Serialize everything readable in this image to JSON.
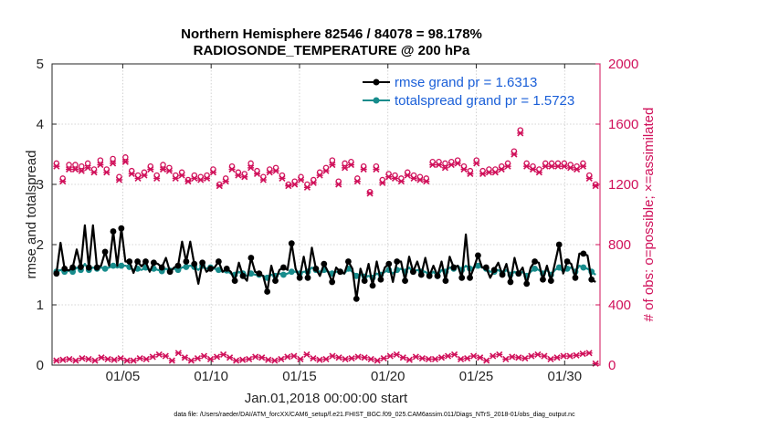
{
  "chart_data": {
    "type": "line",
    "title_line1": "Northern Hemisphere 82546 / 84078 = 98.178%",
    "title_line2": "RADIOSONDE_TEMPERATURE @ 200 hPa",
    "xlabel": "Jan.01,2018 00:00:00 start",
    "ylabel_left": "rmse and totalspread",
    "ylabel_right": "# of obs: o=possible; ×=assimilated",
    "footnote": "data file: /Users/raeder/DAI/ATM_forcXX/CAM6_setup/f.e21.FHIST_BGC.f09_025.CAM6assim.011/Diags_NTrS_2018-01/obs_diag_output.nc",
    "xlim": [
      1,
      32
    ],
    "ylim_left": [
      0,
      5
    ],
    "ylim_right": [
      0,
      2000
    ],
    "x_ticks": [
      5,
      10,
      15,
      20,
      25,
      30
    ],
    "x_tick_labels": [
      "01/05",
      "01/10",
      "01/15",
      "01/20",
      "01/25",
      "01/30"
    ],
    "y_ticks_left": [
      "0",
      "1",
      "2",
      "3",
      "4",
      "5"
    ],
    "y_ticks_right": [
      "0",
      "400",
      "800",
      "1200",
      "1600",
      "2000"
    ],
    "colors": {
      "rmse": "#000000",
      "spread": "#178c8c",
      "obs": "#d0105a",
      "legend_text": "#1a5fd8"
    },
    "series": [
      {
        "name": "rmse",
        "legend": "rmse grand pr = 1.6313",
        "axis": "left",
        "values": [
          1.52,
          2.03,
          1.6,
          1.57,
          1.62,
          1.92,
          1.63,
          2.32,
          1.62,
          2.32,
          1.62,
          1.65,
          1.88,
          1.65,
          2.22,
          1.65,
          2.27,
          1.72,
          1.72,
          1.53,
          1.72,
          1.64,
          1.72,
          1.55,
          1.7,
          1.68,
          1.62,
          1.78,
          1.55,
          1.62,
          1.65,
          2.05,
          1.72,
          2.05,
          1.68,
          1.35,
          1.7,
          1.55,
          1.6,
          1.62,
          1.72,
          1.55,
          1.6,
          1.55,
          1.4,
          1.7,
          1.48,
          1.4,
          1.78,
          1.55,
          1.52,
          1.48,
          1.22,
          1.65,
          1.4,
          1.58,
          1.62,
          1.58,
          2.02,
          1.6,
          1.45,
          1.8,
          1.45,
          1.95,
          1.6,
          1.48,
          1.68,
          1.55,
          1.38,
          1.62,
          1.55,
          1.52,
          1.72,
          1.6,
          1.1,
          1.6,
          1.4,
          1.68,
          1.32,
          1.72,
          1.42,
          1.62,
          1.68,
          1.38,
          1.72,
          1.72,
          1.4,
          1.8,
          1.55,
          1.72,
          1.5,
          1.78,
          1.48,
          1.65,
          1.48,
          1.72,
          1.4,
          1.8,
          1.62,
          1.65,
          1.45,
          2.17,
          1.45,
          1.62,
          1.82,
          1.62,
          1.62,
          1.45,
          1.58,
          1.7,
          1.5,
          1.68,
          1.38,
          1.78,
          1.52,
          1.62,
          1.35,
          1.62,
          1.72,
          1.7,
          1.42,
          1.65,
          1.4,
          1.7,
          2.0,
          1.52,
          1.72,
          1.68,
          1.45,
          1.85,
          1.85,
          1.82,
          1.42,
          1.38
        ],
        "markers_every": 2
      },
      {
        "name": "totalspread",
        "legend": "totalspread grand pr = 1.5723",
        "axis": "left",
        "values": [
          1.55,
          1.58,
          1.55,
          1.57,
          1.55,
          1.62,
          1.58,
          1.68,
          1.58,
          1.62,
          1.6,
          1.62,
          1.6,
          1.62,
          1.65,
          1.62,
          1.65,
          1.65,
          1.63,
          1.58,
          1.6,
          1.58,
          1.62,
          1.57,
          1.6,
          1.58,
          1.56,
          1.6,
          1.57,
          1.6,
          1.58,
          1.62,
          1.63,
          1.65,
          1.63,
          1.58,
          1.65,
          1.6,
          1.62,
          1.6,
          1.58,
          1.55,
          1.57,
          1.52,
          1.5,
          1.55,
          1.52,
          1.48,
          1.52,
          1.5,
          1.5,
          1.48,
          1.45,
          1.5,
          1.48,
          1.52,
          1.5,
          1.52,
          1.55,
          1.55,
          1.52,
          1.55,
          1.55,
          1.62,
          1.58,
          1.55,
          1.58,
          1.55,
          1.52,
          1.55,
          1.55,
          1.52,
          1.6,
          1.55,
          1.48,
          1.5,
          1.47,
          1.48,
          1.45,
          1.52,
          1.5,
          1.55,
          1.58,
          1.52,
          1.58,
          1.6,
          1.55,
          1.62,
          1.55,
          1.58,
          1.55,
          1.55,
          1.5,
          1.55,
          1.48,
          1.58,
          1.55,
          1.62,
          1.6,
          1.65,
          1.58,
          1.65,
          1.6,
          1.62,
          1.65,
          1.62,
          1.6,
          1.55,
          1.55,
          1.58,
          1.52,
          1.58,
          1.5,
          1.55,
          1.52,
          1.55,
          1.48,
          1.55,
          1.6,
          1.58,
          1.52,
          1.58,
          1.5,
          1.58,
          1.62,
          1.55,
          1.6,
          1.62,
          1.55,
          1.65,
          1.62,
          1.6,
          1.55,
          1.5
        ],
        "markers_every": 2
      },
      {
        "name": "obs_possible",
        "marker": "o",
        "axis": "right",
        "values": [
          1340,
          1240,
          1330,
          1330,
          1320,
          1340,
          1300,
          1360,
          1300,
          1370,
          1250,
          1380,
          1290,
          1260,
          1280,
          1320,
          1260,
          1330,
          1310,
          1260,
          1280,
          1230,
          1260,
          1250,
          1260,
          1300,
          1200,
          1240,
          1320,
          1280,
          1270,
          1340,
          1290,
          1250,
          1300,
          1310,
          1260,
          1200,
          1220,
          1250,
          1200,
          1230,
          1280,
          1310,
          1360,
          1220,
          1340,
          1350,
          1240,
          1320,
          1150,
          1320,
          1230,
          1270,
          1260,
          1240,
          1280,
          1260,
          1250,
          1240,
          1350,
          1350,
          1340,
          1350,
          1360,
          1320,
          1290,
          1360,
          1290,
          1300,
          1300,
          1320,
          1340,
          1420,
          1560,
          1340,
          1320,
          1300,
          1340,
          1340,
          1340,
          1340,
          1330,
          1320,
          1340,
          1260,
          1200
        ]
      },
      {
        "name": "obs_assimilated",
        "marker": "x",
        "axis": "right",
        "values": [
          1320,
          1220,
          1300,
          1300,
          1290,
          1310,
          1280,
          1330,
          1280,
          1340,
          1230,
          1350,
          1270,
          1240,
          1260,
          1300,
          1240,
          1300,
          1290,
          1240,
          1260,
          1220,
          1240,
          1230,
          1240,
          1280,
          1190,
          1220,
          1300,
          1260,
          1250,
          1310,
          1270,
          1230,
          1280,
          1290,
          1240,
          1190,
          1200,
          1230,
          1180,
          1210,
          1260,
          1290,
          1330,
          1200,
          1310,
          1330,
          1220,
          1300,
          1140,
          1300,
          1210,
          1250,
          1240,
          1220,
          1260,
          1240,
          1230,
          1220,
          1330,
          1330,
          1310,
          1330,
          1340,
          1300,
          1270,
          1340,
          1270,
          1280,
          1280,
          1300,
          1320,
          1400,
          1540,
          1320,
          1300,
          1280,
          1320,
          1320,
          1320,
          1320,
          1310,
          1300,
          1320,
          1240,
          1190
        ]
      },
      {
        "name": "obs_low",
        "marker": "x",
        "axis": "right",
        "values": [
          30,
          35,
          40,
          30,
          45,
          40,
          30,
          50,
          40,
          35,
          45,
          30,
          30,
          45,
          40,
          55,
          70,
          60,
          30,
          80,
          50,
          30,
          45,
          60,
          40,
          55,
          70,
          50,
          30,
          35,
          40,
          55,
          50,
          35,
          30,
          40,
          55,
          60,
          40,
          70,
          45,
          35,
          40,
          60,
          50,
          40,
          45,
          55,
          50,
          40,
          30,
          45,
          60,
          70,
          50,
          35,
          55,
          45,
          40,
          40,
          50,
          60,
          70,
          40,
          45,
          60,
          50,
          30,
          60,
          70,
          40,
          55,
          50,
          45,
          60,
          70,
          60,
          40,
          50,
          60,
          60,
          65,
          75,
          80,
          10
        ]
      }
    ]
  }
}
